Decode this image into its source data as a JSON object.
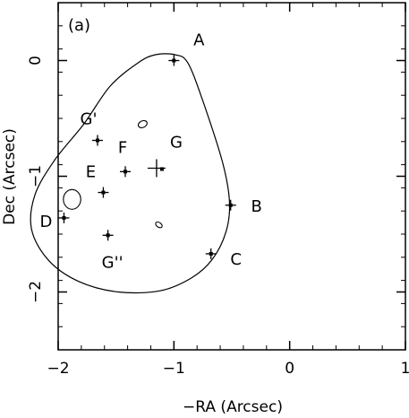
{
  "chart_data": {
    "type": "scatter",
    "panel_label": "(a)",
    "xlabel": "−RA (Arcsec)",
    "ylabel": "Dec (Arcsec)",
    "xlim": [
      -2,
      1
    ],
    "ylim": [
      -2.5,
      0.5
    ],
    "x_reversed": true,
    "xticks": [
      {
        "value": -2,
        "label": "−2"
      },
      {
        "value": -1,
        "label": "−1"
      },
      {
        "value": 0,
        "label": "0"
      },
      {
        "value": 1,
        "label": "1"
      }
    ],
    "yticks": [
      {
        "value": 0,
        "label": "0"
      },
      {
        "value": -1,
        "label": "−1"
      },
      {
        "value": -2,
        "label": "−2"
      }
    ],
    "points": [
      {
        "name": "A",
        "x": 0.0,
        "y": 0.0
      },
      {
        "name": "B",
        "x": -0.49,
        "y": -1.25
      },
      {
        "name": "C",
        "x": -0.32,
        "y": -1.67
      },
      {
        "name": "D",
        "x": 0.95,
        "y": -1.36
      },
      {
        "name": "E",
        "x": 0.61,
        "y": -1.14
      },
      {
        "name": "F",
        "x": 0.42,
        "y": -0.96
      },
      {
        "name": "G",
        "x": 0.15,
        "y": -0.93
      },
      {
        "name": "G'",
        "x": 0.66,
        "y": -0.69
      },
      {
        "name": "G''",
        "x": 0.57,
        "y": -1.51
      }
    ],
    "critical_curve": [
      [
        0.31,
        -0.02
      ],
      [
        0.16,
        0.05
      ],
      [
        -0.01,
        0.05
      ],
      [
        -0.12,
        -0.02
      ],
      [
        -0.25,
        -0.35
      ],
      [
        -0.42,
        -0.88
      ],
      [
        -0.48,
        -1.22
      ],
      [
        -0.45,
        -1.48
      ],
      [
        -0.33,
        -1.72
      ],
      [
        -0.15,
        -1.88
      ],
      [
        0.12,
        -1.99
      ],
      [
        0.48,
        -2.0
      ],
      [
        0.82,
        -1.91
      ],
      [
        1.08,
        -1.73
      ],
      [
        1.23,
        -1.46
      ],
      [
        1.2,
        -1.16
      ],
      [
        1.03,
        -0.86
      ],
      [
        0.78,
        -0.55
      ],
      [
        0.55,
        -0.22
      ],
      [
        0.31,
        -0.02
      ]
    ],
    "small_curves": [
      {
        "x": 0.88,
        "y": -1.2,
        "rx": 0.075,
        "ry": 0.085,
        "rotation_deg": 0
      },
      {
        "x": 0.27,
        "y": -0.55,
        "rx": 0.04,
        "ry": 0.028,
        "rotation_deg": 25
      },
      {
        "x": 0.13,
        "y": -1.42,
        "rx": 0.032,
        "ry": 0.02,
        "rotation_deg": -35
      }
    ]
  }
}
